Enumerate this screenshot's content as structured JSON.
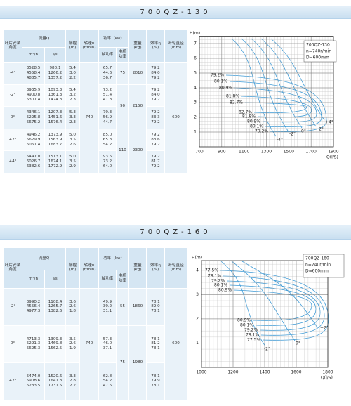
{
  "sections": [
    {
      "title": "700QZ-130",
      "table": {
        "headers": {
          "angle": "叶片安装角度",
          "flow": "流量Q",
          "flow_m3h": "m³/h",
          "flow_ls": "l/s",
          "head": "扬程\n(m)",
          "speed": "转速n\n(r/min)",
          "power": "功率（kw）",
          "shaft_power": "轴功率",
          "motor_power": "电机\n功率",
          "weight": "重量\n(kg)",
          "efficiency": "效率η\n(%)",
          "diameter": "叶轮直径\n(mm)"
        },
        "speed": "740",
        "diameter": "600",
        "blocks": [
          {
            "motor": "75",
            "weight": "2010",
            "groups": [
              {
                "angle": "-4°",
                "rows": [
                  [
                    "3528.5",
                    "980.1",
                    "5.4",
                    "65.7",
                    "79.2"
                  ],
                  [
                    "4558.4",
                    "1266.2",
                    "3.0",
                    "44.6",
                    "84.0"
                  ],
                  [
                    "4885.7",
                    "1357.2",
                    "2.2",
                    "36.7",
                    "79.2"
                  ]
                ]
              }
            ]
          },
          {
            "motor": "90",
            "weight": "2150",
            "groups": [
              {
                "angle": "-2°",
                "rows": [
                  [
                    "3935.9",
                    "1093.3",
                    "5.4",
                    "73.2",
                    "79.2"
                  ],
                  [
                    "4900.8",
                    "1361.3",
                    "3.2",
                    "51.4",
                    "84.0"
                  ],
                  [
                    "5307.4",
                    "1474.3",
                    "2.3",
                    "41.8",
                    "79.2"
                  ]
                ]
              },
              {
                "angle": "0°",
                "rows": [
                  [
                    "4346.1",
                    "1207.3",
                    "5.3",
                    "79.3",
                    "79.2"
                  ],
                  [
                    "5225.8",
                    "1451.6",
                    "3.3",
                    "56.9",
                    "83.3"
                  ],
                  [
                    "5675.2",
                    "1576.4",
                    "2.3",
                    "44.7",
                    "79.2"
                  ]
                ]
              }
            ]
          },
          {
            "motor": "110",
            "weight": "2300",
            "groups": [
              {
                "angle": "+2°",
                "rows": [
                  [
                    "4946.2",
                    "1373.9",
                    "5.0",
                    "85.0",
                    "79.2"
                  ],
                  [
                    "5629.9",
                    "1563.9",
                    "3.5",
                    "65.8",
                    "83.6"
                  ],
                  [
                    "6061.4",
                    "1683.7",
                    "2.6",
                    "54.2",
                    "79.2"
                  ]
                ]
              },
              {
                "angle": "+4°",
                "rows": [
                  [
                    "5447.0",
                    "1513.1",
                    "5.0",
                    "93.6",
                    "79.2"
                  ],
                  [
                    "6026.7",
                    "1674.1",
                    "3.5",
                    "73.2",
                    "81.7"
                  ],
                  [
                    "6382.6",
                    "1772.9",
                    "2.9",
                    "64.0",
                    "79.2"
                  ]
                ]
              }
            ]
          }
        ]
      },
      "chart": {
        "ylabel": "H(m)",
        "xlabel": "Q(l/S)",
        "xlim": [
          700,
          1900
        ],
        "ylim": [
          0,
          7.5
        ],
        "xticks": [
          700,
          900,
          1100,
          1300,
          1500,
          1700,
          1900
        ],
        "yticks": [
          1,
          2,
          3,
          4,
          5,
          6,
          7
        ],
        "legend": [
          "700QZ-130",
          "n=740r/min",
          "D=600mm"
        ],
        "efficiency_upper": [
          "79.2%",
          "80.1%",
          "80.9%",
          "81.8%",
          "82.7%"
        ],
        "efficiency_lower": [
          "82.7%",
          "81.8%",
          "80.9%",
          "80.1%",
          "79.2%"
        ],
        "angles": [
          "-4°",
          "-2°",
          "0°",
          "+2°",
          "+4°"
        ]
      }
    },
    {
      "title": "700QZ-160",
      "table": {
        "headers": {
          "angle": "叶片安装角度",
          "flow": "流量Q",
          "flow_m3h": "m³/h",
          "flow_ls": "l/s",
          "head": "扬程\n(m)",
          "speed": "转速n\n(r/min)",
          "power": "功率（kw）",
          "shaft_power": "轴功率",
          "motor_power": "电机\n功率",
          "weight": "重量\n(kg)",
          "efficiency": "效率η\n(%)",
          "diameter": "叶轮直径\n(mm)"
        },
        "speed": "740",
        "diameter": "600",
        "blocks": [
          {
            "motor": "55",
            "weight": "1860",
            "groups": [
              {
                "angle": "-2°",
                "rows": [
                  [
                    "3990.2",
                    "1108.4",
                    "3.6",
                    "49.9",
                    "78.1"
                  ],
                  [
                    "4556.4",
                    "1265.7",
                    "2.6",
                    "39.2",
                    "82.0"
                  ],
                  [
                    "4977.3",
                    "1382.6",
                    "1.8",
                    "31.1",
                    "78.1"
                  ]
                ]
              }
            ]
          },
          {
            "motor": "75",
            "weight": "1980",
            "groups": [
              {
                "angle": "0°",
                "rows": [
                  [
                    "4713.3",
                    "1309.3",
                    "3.5",
                    "57.3",
                    "78.1"
                  ],
                  [
                    "5291.3",
                    "1469.8",
                    "2.6",
                    "46.0",
                    "81.2"
                  ],
                  [
                    "5625.3",
                    "1562.5",
                    "1.9",
                    "37.1",
                    "78.1"
                  ]
                ]
              },
              {
                "angle": "+2°",
                "rows": [
                  [
                    "5474.0",
                    "1520.6",
                    "3.3",
                    "62.8",
                    "78.1"
                  ],
                  [
                    "5908.6",
                    "1641.3",
                    "2.8",
                    "54.2",
                    "79.9"
                  ],
                  [
                    "6233.5",
                    "1731.5",
                    "2.2",
                    "47.6",
                    "78.1"
                  ]
                ]
              }
            ]
          }
        ]
      },
      "chart": {
        "ylabel": "H(m)",
        "xlabel": "Q(l/S)",
        "xlim": [
          1000,
          1800
        ],
        "ylim": [
          0,
          4.4
        ],
        "xticks": [
          1000,
          1200,
          1400,
          1600,
          1800
        ],
        "yticks": [
          1,
          2,
          3,
          4
        ],
        "legend": [
          "700QZ-160",
          "n=740r/min",
          "D=600mm"
        ],
        "efficiency_upper": [
          "77.5%",
          "78.1%",
          "79.2%",
          "80.1%",
          "80.9%"
        ],
        "efficiency_lower": [
          "80.9%",
          "80.1%",
          "79.2%",
          "78.1%",
          "77.5%"
        ],
        "angles": [
          "-2°",
          "0°",
          "+2°"
        ]
      }
    }
  ]
}
